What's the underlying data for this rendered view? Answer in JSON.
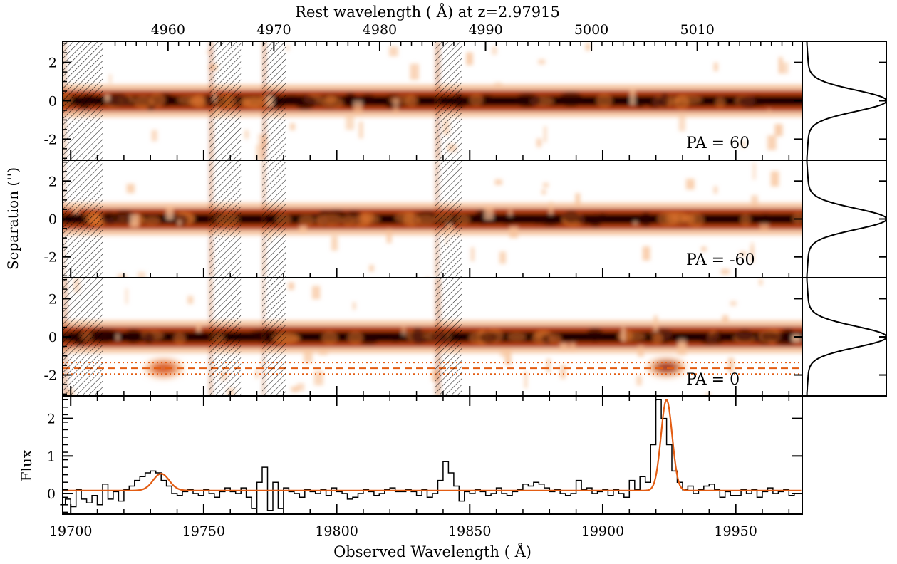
{
  "chart_data": [
    {
      "type": "heatmap",
      "title": "Rest wavelength ( Å) at z=2.97915",
      "ylabel": "Separation ('')",
      "xlim": [
        19697,
        19975
      ],
      "ylim": [
        -3.1,
        3.1
      ],
      "yticks": [
        2,
        0,
        -2
      ],
      "top_axis": {
        "label": "Rest wavelength ( Å) at z=2.97915",
        "ticks": [
          4960,
          4970,
          4980,
          4990,
          5000,
          5010
        ]
      },
      "masked_regions": [
        [
          19697,
          19712
        ],
        [
          19752,
          19764
        ],
        [
          19772,
          19781
        ],
        [
          19837,
          19847
        ]
      ],
      "colors": {
        "trace_dark": "#1a0000",
        "trace_mid": "#b03a0c",
        "trace_light": "#f6c9a8",
        "hatch": "#000000"
      },
      "panels": [
        {
          "label": "PA = 60",
          "trace_center": 0.0,
          "trace_width": 1.0,
          "spatial_profile": {
            "y": [
              -3,
              -2.5,
              -2,
              -1.5,
              -1,
              -0.5,
              0,
              0.5,
              1,
              1.5,
              2,
              2.5,
              3
            ],
            "value": [
              0.01,
              0.02,
              0.06,
              0.15,
              0.45,
              0.85,
              1.0,
              0.8,
              0.4,
              0.14,
              0.05,
              0.02,
              0.01
            ]
          }
        },
        {
          "label": "PA = -60",
          "trace_center": 0.0,
          "trace_width": 1.0,
          "spatial_profile": {
            "y": [
              -3,
              -2.5,
              -2,
              -1.5,
              -1,
              -0.5,
              0,
              0.5,
              1,
              1.5,
              2,
              2.5,
              3
            ],
            "value": [
              0.01,
              0.02,
              0.05,
              0.14,
              0.42,
              0.82,
              1.0,
              0.78,
              0.38,
              0.12,
              0.04,
              0.02,
              0.01
            ]
          }
        },
        {
          "label": "PA = 0",
          "trace_center": 0.0,
          "trace_width": 1.0,
          "offset_emission": [
            {
              "x": 19735,
              "y": -1.65,
              "strength": 0.55
            },
            {
              "x": 19924,
              "y": -1.6,
              "strength": 1.0
            }
          ],
          "extraction_center": -1.65,
          "extraction_limits": [
            -1.35,
            -1.95
          ],
          "spatial_profile": {
            "y": [
              -3,
              -2.5,
              -2,
              -1.5,
              -1,
              -0.5,
              0,
              0.5,
              1,
              1.5,
              2,
              2.5,
              3
            ],
            "value": [
              0.01,
              0.02,
              0.07,
              0.12,
              0.42,
              0.82,
              1.0,
              0.8,
              0.4,
              0.13,
              0.05,
              0.02,
              0.01
            ]
          }
        }
      ]
    },
    {
      "type": "line",
      "xlabel": "Observed Wavelength ( Å)",
      "ylabel": "Flux",
      "xlim": [
        19697,
        19975
      ],
      "ylim": [
        -0.55,
        2.6
      ],
      "xticks": [
        19700,
        19750,
        19800,
        19850,
        19900,
        19950
      ],
      "yticks": [
        0,
        1,
        2
      ],
      "series": [
        {
          "style": "step",
          "color": "#000000",
          "x": [
            19697,
            19699,
            19701,
            19703,
            19705,
            19707,
            19709,
            19711,
            19713,
            19715,
            19717,
            19719,
            19721,
            19723,
            19725,
            19727,
            19729,
            19731,
            19733,
            19735,
            19737,
            19739,
            19741,
            19743,
            19745,
            19747,
            19749,
            19751,
            19753,
            19755,
            19757,
            19759,
            19761,
            19763,
            19765,
            19767,
            19769,
            19771,
            19773,
            19775,
            19777,
            19779,
            19781,
            19783,
            19785,
            19787,
            19789,
            19791,
            19793,
            19795,
            19797,
            19799,
            19801,
            19803,
            19805,
            19807,
            19809,
            19811,
            19813,
            19815,
            19817,
            19819,
            19821,
            19823,
            19825,
            19827,
            19829,
            19831,
            19833,
            19835,
            19837,
            19839,
            19841,
            19843,
            19845,
            19847,
            19849,
            19851,
            19853,
            19855,
            19857,
            19859,
            19861,
            19863,
            19865,
            19867,
            19869,
            19871,
            19873,
            19875,
            19877,
            19879,
            19881,
            19883,
            19885,
            19887,
            19889,
            19891,
            19893,
            19895,
            19897,
            19899,
            19901,
            19903,
            19905,
            19907,
            19909,
            19911,
            19913,
            19915,
            19917,
            19919,
            19921,
            19923,
            19925,
            19927,
            19929,
            19931,
            19933,
            19935,
            19937,
            19939,
            19941,
            19943,
            19945,
            19947,
            19949,
            19951,
            19953,
            19955,
            19957,
            19959,
            19961,
            19963,
            19965,
            19967,
            19969,
            19971,
            19973
          ],
          "y": [
            -0.3,
            -0.15,
            -0.35,
            0.1,
            -0.15,
            -0.25,
            -0.05,
            -0.3,
            0.25,
            -0.15,
            0.05,
            -0.2,
            0.1,
            0.2,
            0.35,
            0.45,
            0.55,
            0.6,
            0.55,
            0.35,
            0.2,
            0.0,
            -0.05,
            0.05,
            0.1,
            0.0,
            -0.05,
            0.1,
            0.0,
            -0.1,
            0.05,
            0.15,
            0.05,
            0.0,
            0.15,
            -0.1,
            -0.4,
            0.3,
            0.7,
            -0.45,
            0.3,
            -0.4,
            0.15,
            0.05,
            0.0,
            -0.1,
            0.1,
            0.05,
            0.0,
            0.1,
            -0.05,
            0.15,
            0.05,
            0.0,
            -0.15,
            -0.1,
            0.0,
            0.1,
            0.05,
            -0.05,
            0.0,
            0.1,
            0.15,
            0.05,
            0.05,
            0.1,
            0.05,
            -0.05,
            0.1,
            -0.1,
            0.0,
            0.35,
            0.85,
            0.55,
            0.2,
            -0.2,
            0.05,
            0.0,
            0.1,
            0.05,
            -0.05,
            0.0,
            0.15,
            0.0,
            -0.05,
            0.05,
            0.1,
            0.25,
            0.2,
            0.3,
            0.25,
            0.15,
            0.05,
            0.1,
            0.0,
            -0.05,
            0.0,
            0.35,
            0.1,
            0.15,
            0.0,
            0.05,
            0.1,
            -0.05,
            0.1,
            0.0,
            -0.1,
            0.35,
            0.1,
            0.45,
            0.3,
            1.3,
            2.5,
            2.0,
            1.3,
            0.6,
            0.3,
            0.1,
            0.2,
            0.0,
            0.1,
            0.2,
            0.25,
            0.1,
            -0.1,
            0.05,
            -0.05,
            -0.05,
            0.1,
            0.0,
            0.1,
            -0.1,
            0.05,
            0.15,
            0.0,
            0.05,
            0.1,
            -0.05,
            0.0
          ]
        },
        {
          "style": "model",
          "color": "#e35d13",
          "baseline": 0.08,
          "components": [
            {
              "center": 19734,
              "amplitude": 0.45,
              "sigma": 3.0
            },
            {
              "center": 19924,
              "amplitude": 2.42,
              "sigma": 2.1
            }
          ]
        }
      ]
    }
  ]
}
